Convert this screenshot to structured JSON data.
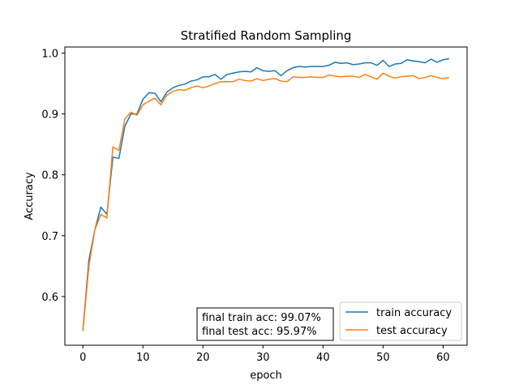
{
  "chart_data": {
    "type": "line",
    "title": "Stratified Random Sampling",
    "xlabel": "epoch",
    "ylabel": "Accuracy",
    "xlim": [
      -3,
      64
    ],
    "ylim": [
      0.52,
      1.01
    ],
    "xticks": [
      0,
      10,
      20,
      30,
      40,
      50,
      60
    ],
    "yticks": [
      0.6,
      0.7,
      0.8,
      0.9,
      1.0
    ],
    "ytick_labels": [
      "0.6",
      "0.7",
      "0.8",
      "0.9",
      "1.0"
    ],
    "grid": false,
    "legend_position": "lower-right",
    "annotation": [
      "final train acc: 99.07%",
      "final test acc: 95.97%"
    ],
    "x": [
      0,
      1,
      2,
      3,
      4,
      5,
      6,
      7,
      8,
      9,
      10,
      11,
      12,
      13,
      14,
      15,
      16,
      17,
      18,
      19,
      20,
      21,
      22,
      23,
      24,
      25,
      26,
      27,
      28,
      29,
      30,
      31,
      32,
      33,
      34,
      35,
      36,
      37,
      38,
      39,
      40,
      41,
      42,
      43,
      44,
      45,
      46,
      47,
      48,
      49,
      50,
      51,
      52,
      53,
      54,
      55,
      56,
      57,
      58,
      59,
      60,
      61
    ],
    "series": [
      {
        "name": "train accuracy",
        "color": "#1f77b4",
        "values": [
          0.545,
          0.66,
          0.71,
          0.747,
          0.735,
          0.829,
          0.827,
          0.88,
          0.9,
          0.9,
          0.924,
          0.935,
          0.934,
          0.92,
          0.936,
          0.943,
          0.947,
          0.949,
          0.954,
          0.956,
          0.961,
          0.961,
          0.965,
          0.957,
          0.965,
          0.967,
          0.969,
          0.97,
          0.969,
          0.976,
          0.971,
          0.97,
          0.971,
          0.963,
          0.971,
          0.976,
          0.978,
          0.977,
          0.978,
          0.978,
          0.978,
          0.98,
          0.985,
          0.983,
          0.984,
          0.981,
          0.982,
          0.984,
          0.984,
          0.98,
          0.988,
          0.978,
          0.982,
          0.983,
          0.989,
          0.987,
          0.986,
          0.984,
          0.99,
          0.985,
          0.989,
          0.9907
        ]
      },
      {
        "name": "test accuracy",
        "color": "#ff7f0e",
        "values": [
          0.543,
          0.65,
          0.71,
          0.735,
          0.729,
          0.846,
          0.84,
          0.892,
          0.903,
          0.898,
          0.915,
          0.921,
          0.926,
          0.915,
          0.931,
          0.937,
          0.94,
          0.939,
          0.943,
          0.946,
          0.943,
          0.946,
          0.95,
          0.953,
          0.953,
          0.953,
          0.957,
          0.955,
          0.954,
          0.958,
          0.955,
          0.957,
          0.958,
          0.954,
          0.953,
          0.961,
          0.96,
          0.96,
          0.961,
          0.96,
          0.96,
          0.964,
          0.962,
          0.961,
          0.962,
          0.962,
          0.96,
          0.965,
          0.961,
          0.957,
          0.967,
          0.962,
          0.959,
          0.961,
          0.962,
          0.963,
          0.958,
          0.96,
          0.963,
          0.96,
          0.958,
          0.9597
        ]
      }
    ]
  }
}
